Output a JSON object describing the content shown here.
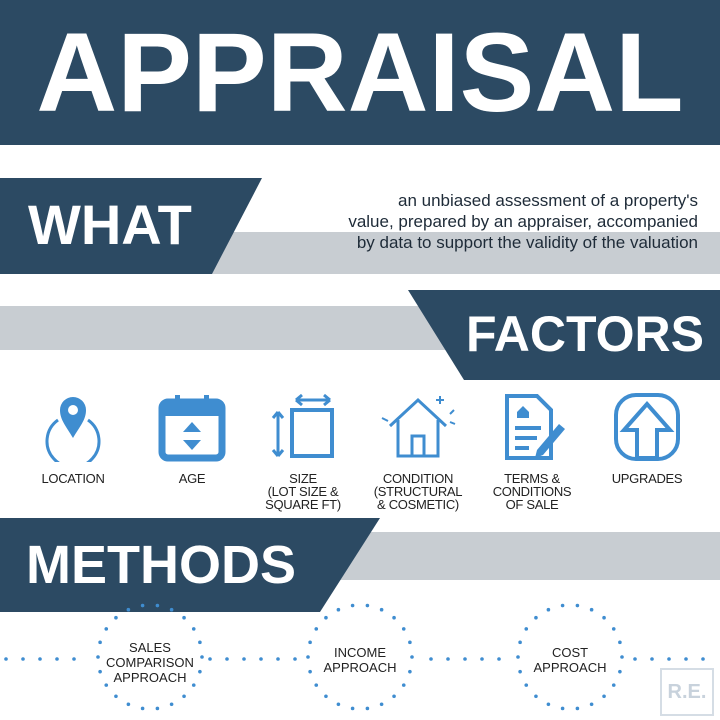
{
  "title": "APPRAISAL",
  "what": {
    "heading": "WHAT",
    "lines": [
      "an unbiased assessment of a property's",
      "value, prepared by an appraiser, accompanied",
      "by  data to support the validity of the valuation"
    ]
  },
  "factors": {
    "heading": "FACTORS",
    "items": [
      {
        "icon": "location-pin-icon",
        "label": "LOCATION"
      },
      {
        "icon": "calendar-icon",
        "label": "AGE"
      },
      {
        "icon": "size-measure-icon",
        "label": "SIZE\n(LOT SIZE &\nSQUARE FT)"
      },
      {
        "icon": "house-icon",
        "label": "CONDITION\n(STRUCTURAL\n& COSMETIC)"
      },
      {
        "icon": "contract-document-icon",
        "label": "TERMS &\nCONDITIONS\nOF SALE"
      },
      {
        "icon": "upgrade-arrow-icon",
        "label": "UPGRADES"
      }
    ]
  },
  "methods": {
    "heading": "METHODS",
    "items": [
      {
        "label": "SALES\nCOMPARISON\nAPPROACH"
      },
      {
        "label": "INCOME\nAPPROACH"
      },
      {
        "label": "COST\nAPPROACH"
      }
    ]
  },
  "watermark": "R.E.",
  "colors": {
    "navy": "#2c4a63",
    "gray": "#c8cdd2",
    "icon_blue": "#3f8dd0",
    "dot_blue": "#3f8dd0"
  }
}
